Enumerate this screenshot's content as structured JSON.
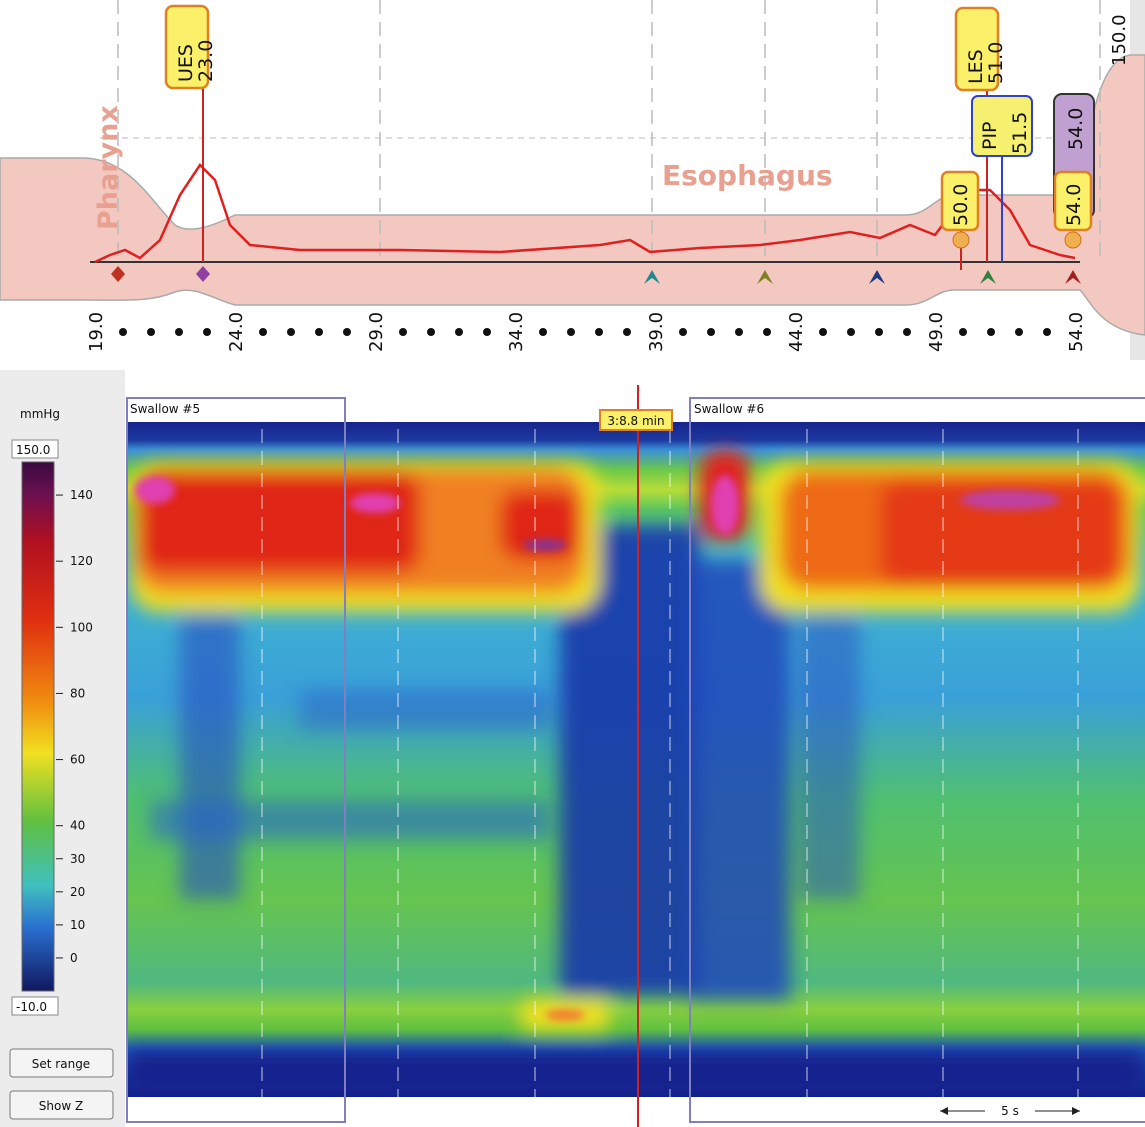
{
  "profile": {
    "regions": [
      "Pharynx",
      "Esophagus"
    ],
    "markers": [
      {
        "name": "UES",
        "value": "23.0"
      },
      {
        "name": "LES",
        "value": "51.0"
      },
      {
        "name": "PIP",
        "value": "51.5"
      },
      {
        "value": "54.0"
      },
      {
        "value": "50.0"
      },
      {
        "value": "54.0"
      }
    ],
    "scale_max": "150.0",
    "position_labels": [
      "19.0",
      "24.0",
      "29.0",
      "34.0",
      "39.0",
      "44.0",
      "49.0",
      "54.0"
    ]
  },
  "colorbar": {
    "unit": "mmHg",
    "max_label": "150.0",
    "min_label": "-10.0",
    "range": [
      -10,
      150
    ],
    "ticks": [
      140,
      120,
      100,
      80,
      60,
      40,
      30,
      20,
      10,
      0
    ]
  },
  "buttons": [
    "Set range",
    "Show Z"
  ],
  "plot": {
    "swallows": [
      "Swallow #5",
      "Swallow #6"
    ],
    "cursor": "3:8.8 min",
    "scale_bar": "5 s"
  }
}
